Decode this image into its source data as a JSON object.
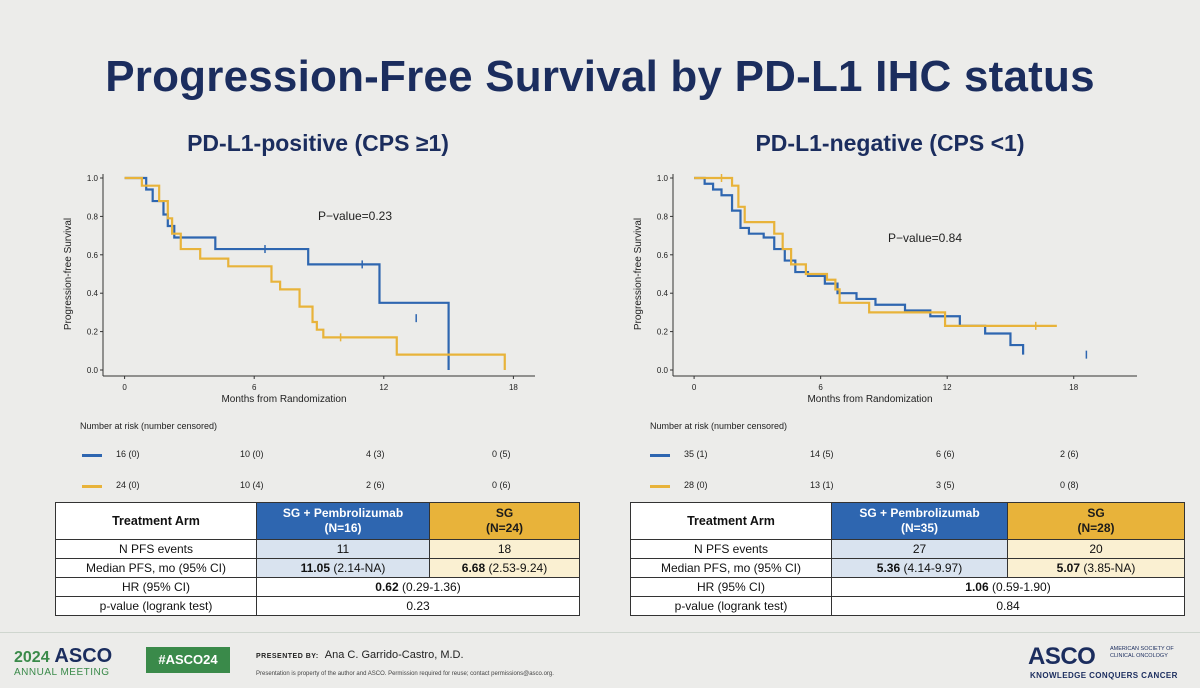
{
  "title": "Progression-Free Survival by PD-L1 IHC status",
  "colors": {
    "sg_pembro": "#2e66b0",
    "sg": "#e8b33a",
    "title": "#1b2d5e",
    "asco_green": "#3a8a4a"
  },
  "panels": [
    {
      "subtitle": "PD-L1-positive (CPS ≥1)",
      "risk_title": "Number at risk (number censored)",
      "risk": {
        "sg_pembro": [
          "16 (0)",
          "10 (0)",
          "4 (3)",
          "0 (5)"
        ],
        "sg": [
          "24 (0)",
          "10 (4)",
          "2 (6)",
          "0 (6)"
        ]
      },
      "table": {
        "header_arm": "Treatment Arm",
        "header_a": "SG + Pembrolizumab",
        "header_a_n": "(N=16)",
        "header_b": "SG",
        "header_b_n": "(N=24)",
        "rows": [
          {
            "label": "N PFS events",
            "a": "11",
            "b": "18"
          },
          {
            "label": "Median PFS, mo (95% CI)",
            "a_bold": "11.05",
            "a_rest": " (2.14-NA)",
            "b_bold": "6.68",
            "b_rest": " (2.53-9.24)"
          }
        ],
        "hr_label": "HR (95% CI)",
        "hr_bold": "0.62",
        "hr_rest": " (0.29-1.36)",
        "p_label": "p-value (logrank test)",
        "p_value": "0.23"
      }
    },
    {
      "subtitle": "PD-L1-negative (CPS <1)",
      "risk_title": "Number at risk (number censored)",
      "risk": {
        "sg_pembro": [
          "35 (1)",
          "14 (5)",
          "6 (6)",
          "2 (6)"
        ],
        "sg": [
          "28 (0)",
          "13 (1)",
          "3 (5)",
          "0 (8)"
        ]
      },
      "table": {
        "header_arm": "Treatment Arm",
        "header_a": "SG + Pembrolizumab",
        "header_a_n": "(N=35)",
        "header_b": "SG",
        "header_b_n": "(N=28)",
        "rows": [
          {
            "label": "N PFS events",
            "a": "27",
            "b": "20"
          },
          {
            "label": "Median PFS, mo (95% CI)",
            "a_bold": "5.36",
            "a_rest": " (4.14-9.97)",
            "b_bold": "5.07",
            "b_rest": " (3.85-NA)"
          }
        ],
        "hr_label": "HR (95% CI)",
        "hr_bold": "1.06",
        "hr_rest": " (0.59-1.90)",
        "p_label": "p-value (logrank test)",
        "p_value": "0.84"
      }
    }
  ],
  "chart_data": [
    {
      "type": "line",
      "step": true,
      "title": "PD-L1-positive (CPS ≥1)",
      "xlabel": "Months from Randomization",
      "ylabel": "Progression-free Survival",
      "xlim": [
        -1,
        19
      ],
      "ylim": [
        0,
        1.0
      ],
      "xticks": [
        0,
        6,
        12,
        18
      ],
      "yticks": [
        "0.0",
        "0.2",
        "0.4",
        "0.6",
        "0.8",
        "1.0"
      ],
      "annotation": "P−value=0.23",
      "series": [
        {
          "key": "sg_pembro",
          "color": "#2e66b0",
          "x": [
            0,
            1.0,
            1.3,
            1.8,
            2.0,
            2.3,
            2.8,
            4.2,
            8.5,
            11.2,
            11.8,
            15.0
          ],
          "y": [
            1.0,
            0.94,
            0.88,
            0.81,
            0.75,
            0.69,
            0.69,
            0.63,
            0.55,
            0.55,
            0.35,
            0.0
          ],
          "censor_x": [
            6.5,
            11.0,
            13.5
          ],
          "censor_y": [
            0.63,
            0.55,
            0.27
          ]
        },
        {
          "key": "sg",
          "color": "#e8b33a",
          "x": [
            0,
            0.8,
            1.6,
            2.0,
            2.2,
            2.6,
            3.5,
            4.8,
            6.8,
            7.2,
            8.1,
            8.7,
            8.9,
            9.2,
            12.6,
            15.0,
            17.6
          ],
          "y": [
            1.0,
            0.96,
            0.88,
            0.79,
            0.71,
            0.63,
            0.58,
            0.54,
            0.46,
            0.42,
            0.33,
            0.25,
            0.21,
            0.17,
            0.08,
            0.08,
            0.0
          ],
          "censor_x": [
            10.0
          ],
          "censor_y": [
            0.17
          ]
        }
      ]
    },
    {
      "type": "line",
      "step": true,
      "title": "PD-L1-negative (CPS <1)",
      "xlabel": "Months from Randomization",
      "ylabel": "Progression-free Survival",
      "xlim": [
        -1,
        21
      ],
      "ylim": [
        0,
        1.0
      ],
      "xticks": [
        0,
        6,
        12,
        18
      ],
      "yticks": [
        "0.0",
        "0.2",
        "0.4",
        "0.6",
        "0.8",
        "1.0"
      ],
      "annotation": "P−value=0.84",
      "series": [
        {
          "key": "sg_pembro",
          "color": "#2e66b0",
          "x": [
            0,
            0.5,
            0.9,
            1.3,
            1.8,
            2.2,
            2.6,
            3.3,
            3.8,
            4.3,
            4.8,
            5.4,
            6.2,
            6.8,
            7.7,
            8.6,
            10.0,
            11.2,
            12.6,
            13.8,
            15.0,
            15.6
          ],
          "y": [
            1.0,
            0.97,
            0.94,
            0.91,
            0.83,
            0.74,
            0.71,
            0.69,
            0.63,
            0.57,
            0.51,
            0.49,
            0.45,
            0.4,
            0.37,
            0.34,
            0.31,
            0.28,
            0.23,
            0.19,
            0.13,
            0.08
          ],
          "censor_x": [
            18.6
          ],
          "censor_y": [
            0.08
          ]
        },
        {
          "key": "sg",
          "color": "#e8b33a",
          "x": [
            0,
            1.8,
            2.1,
            2.4,
            3.8,
            4.2,
            4.6,
            5.3,
            6.3,
            6.7,
            6.9,
            8.3,
            9.1,
            11.9,
            17.2
          ],
          "y": [
            1.0,
            0.96,
            0.85,
            0.77,
            0.71,
            0.63,
            0.55,
            0.5,
            0.47,
            0.42,
            0.35,
            0.3,
            0.3,
            0.23,
            0.23
          ],
          "censor_x": [
            1.3,
            16.2
          ],
          "censor_y": [
            1.0,
            0.23
          ]
        }
      ]
    }
  ],
  "footer": {
    "year": "2024",
    "asco": "ASCO",
    "annual": "ANNUAL MEETING",
    "hashtag": "#ASCO24",
    "presented_by": "PRESENTED BY:",
    "presenter": "Ana C. Garrido-Castro, M.D.",
    "disclaimer": "Presentation is property of the author and ASCO. Permission required for reuse; contact permissions@asco.org.",
    "logo": "ASCO",
    "society": "AMERICAN SOCIETY OF CLINICAL ONCOLOGY",
    "tagline": "KNOWLEDGE CONQUERS CANCER"
  }
}
